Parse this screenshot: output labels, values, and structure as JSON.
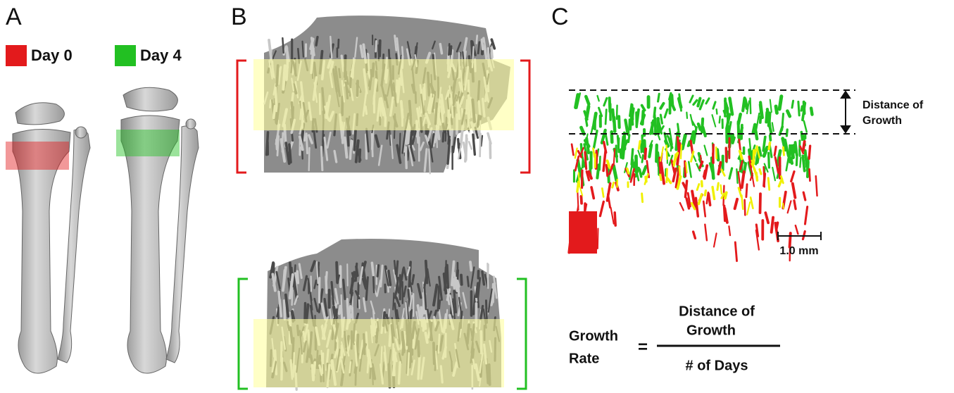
{
  "panels": [
    {
      "label": "A"
    },
    {
      "label": "B"
    },
    {
      "label": "C"
    }
  ],
  "legend": [
    {
      "label": "Day 0",
      "color": "#e31a1c"
    },
    {
      "label": "Day 4",
      "color": "#22c022"
    }
  ],
  "panel_c": {
    "annotation": [
      "Distance of",
      "Growth"
    ],
    "scale_bar": "1.0 mm"
  },
  "formula": {
    "lhs": [
      "Growth",
      "Rate"
    ],
    "equals": "=",
    "numerator": [
      "Distance of",
      "Growth"
    ],
    "denominator": "# of Days"
  }
}
